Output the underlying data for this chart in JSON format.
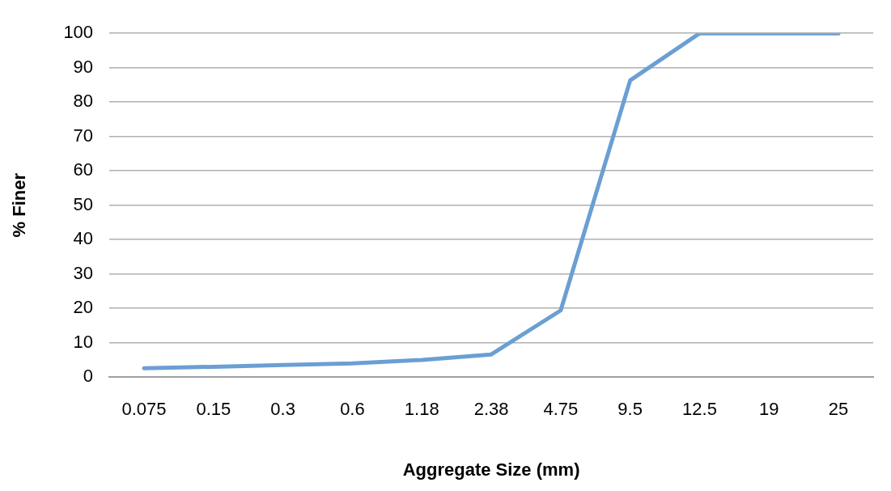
{
  "chart_data": {
    "type": "line",
    "xlabel": "Aggregate Size (mm)",
    "ylabel": "% Finer",
    "categories": [
      "0.075",
      "0.15",
      "0.3",
      "0.6",
      "1.18",
      "2.38",
      "4.75",
      "9.5",
      "12.5",
      "19",
      "25"
    ],
    "series": [
      {
        "color": "#6a9fd4",
        "values": [
          2.6,
          3,
          3.5,
          4,
          5,
          6.6,
          19.4,
          86.3,
          100,
          100,
          100
        ]
      }
    ],
    "ylim": [
      0,
      100
    ],
    "yticks": [
      0,
      10,
      20,
      30,
      40,
      50,
      60,
      70,
      80,
      90,
      100
    ],
    "grid": "y",
    "legend": false,
    "marker": "none",
    "line_style": "solid"
  }
}
